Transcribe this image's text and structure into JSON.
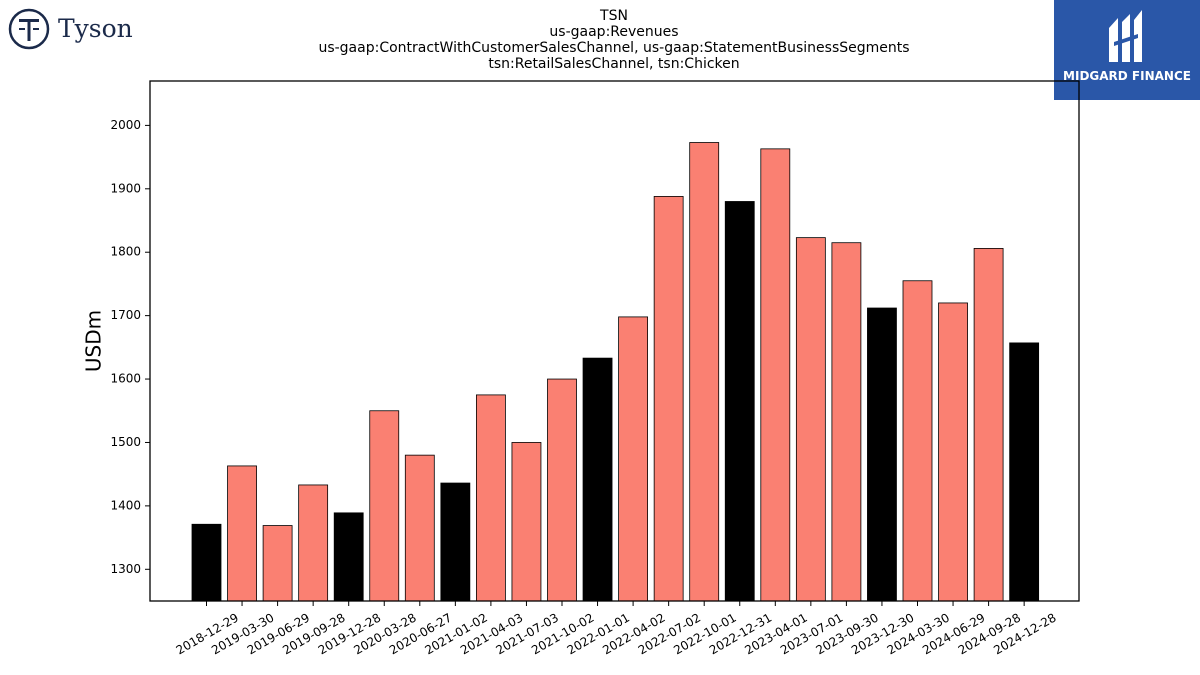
{
  "brand": {
    "left_logo_text": "Tyson",
    "right_logo_text": "MIDGARD FINANCE",
    "accent_navy": "#1b2a4a",
    "accent_blue": "#2a57a8"
  },
  "chart_data": {
    "type": "bar",
    "title_lines": [
      "TSN",
      "us-gaap:Revenues",
      "us-gaap:ContractWithCustomerSalesChannel, us-gaap:StatementBusinessSegments",
      "tsn:RetailSalesChannel, tsn:Chicken"
    ],
    "ylabel": "USDm",
    "xlabel": "",
    "ylim": [
      1250,
      2070
    ],
    "yticks": [
      1300,
      1400,
      1500,
      1600,
      1700,
      1800,
      1900,
      2000
    ],
    "grid": false,
    "colors": {
      "quarter": "#fa8072",
      "fiscal_q1": "#000000"
    },
    "categories": [
      "2018-12-29",
      "2019-03-30",
      "2019-06-29",
      "2019-09-28",
      "2019-12-28",
      "2020-03-28",
      "2020-06-27",
      "2021-01-02",
      "2021-04-03",
      "2021-07-03",
      "2021-10-02",
      "2022-01-01",
      "2022-04-02",
      "2022-07-02",
      "2022-10-01",
      "2022-12-31",
      "2023-04-01",
      "2023-07-01",
      "2023-09-30",
      "2023-12-30",
      "2024-03-30",
      "2024-06-29",
      "2024-09-28",
      "2024-12-28"
    ],
    "values": [
      1371,
      1463,
      1369,
      1433,
      1389,
      1550,
      1480,
      1436,
      1575,
      1500,
      1600,
      1633,
      1698,
      1888,
      1973,
      1880,
      1963,
      1823,
      1815,
      1712,
      1755,
      1720,
      1806,
      1657
    ],
    "highlight": [
      true,
      false,
      false,
      false,
      true,
      false,
      false,
      true,
      false,
      false,
      false,
      true,
      false,
      false,
      false,
      true,
      false,
      false,
      false,
      true,
      false,
      false,
      false,
      true
    ]
  }
}
